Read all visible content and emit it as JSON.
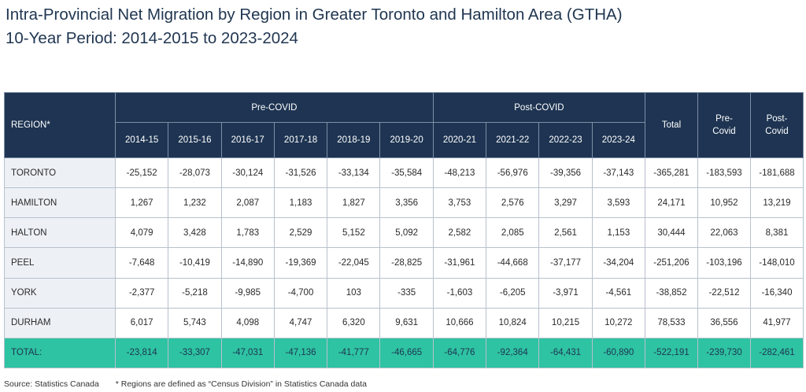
{
  "title_line1": "Intra-Provincial Net Migration by Region in Greater Toronto and Hamilton Area (GTHA)",
  "title_line2": "10-Year Period: 2014-2015 to 2023-2024",
  "header": {
    "region": "REGION*",
    "pre_covid": "Pre-COVID",
    "post_covid": "Post-COVID",
    "total": "Total",
    "pre_covid_total": [
      "Pre-",
      "Covid"
    ],
    "post_covid_total": [
      "Post-",
      "Covid"
    ],
    "years": [
      "2014-15",
      "2015-16",
      "2016-17",
      "2017-18",
      "2018-19",
      "2019-20",
      "2020-21",
      "2021-22",
      "2022-23",
      "2023-24"
    ]
  },
  "rows": [
    {
      "region": "TORONTO",
      "values": [
        "-25,152",
        "-28,073",
        "-30,124",
        "-31,526",
        "-33,134",
        "-35,584",
        "-48,213",
        "-56,976",
        "-39,356",
        "-37,143",
        "-365,281",
        "-183,593",
        "-181,688"
      ]
    },
    {
      "region": "HAMILTON",
      "values": [
        "1,267",
        "1,232",
        "2,087",
        "1,183",
        "1,827",
        "3,356",
        "3,753",
        "2,576",
        "3,297",
        "3,593",
        "24,171",
        "10,952",
        "13,219"
      ]
    },
    {
      "region": "HALTON",
      "values": [
        "4,079",
        "3,428",
        "1,783",
        "2,529",
        "5,152",
        "5,092",
        "2,582",
        "2,085",
        "2,561",
        "1,153",
        "30,444",
        "22,063",
        "8,381"
      ]
    },
    {
      "region": "PEEL",
      "values": [
        "-7,648",
        "-10,419",
        "-14,890",
        "-19,369",
        "-22,045",
        "-28,825",
        "-31,961",
        "-44,668",
        "-37,177",
        "-34,204",
        "-251,206",
        "-103,196",
        "-148,010"
      ]
    },
    {
      "region": "YORK",
      "values": [
        "-2,377",
        "-5,218",
        "-9,985",
        "-4,700",
        "103",
        "-335",
        "-1,603",
        "-6,205",
        "-3,971",
        "-4,561",
        "-38,852",
        "-22,512",
        "-16,340"
      ]
    },
    {
      "region": "DURHAM",
      "values": [
        "6,017",
        "5,743",
        "4,098",
        "4,747",
        "6,320",
        "9,631",
        "10,666",
        "10,824",
        "10,215",
        "10,272",
        "78,533",
        "36,556",
        "41,977"
      ]
    },
    {
      "region": "TOTAL:",
      "values": [
        "-23,814",
        "-33,307",
        "-47,031",
        "-47,136",
        "-41,777",
        "-46,665",
        "-64,776",
        "-92,364",
        "-64,431",
        "-60,890",
        "-522,191",
        "-239,730",
        "-282,461"
      ]
    }
  ],
  "footer": {
    "source": "Source: Statistics Canada",
    "note": "* Regions are defined as “Census Division” in Statistics Canada data"
  }
}
